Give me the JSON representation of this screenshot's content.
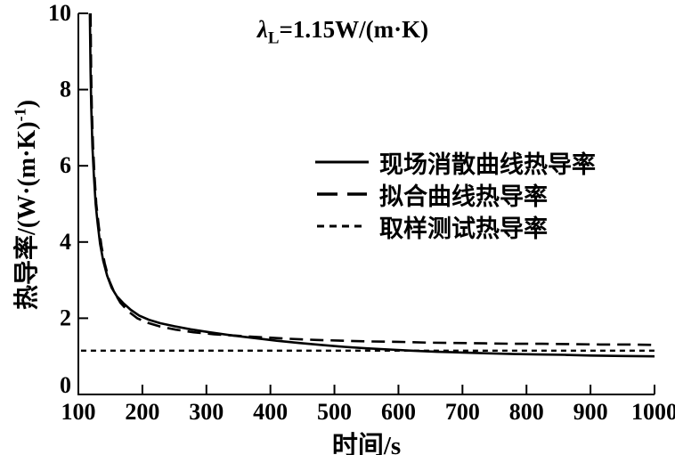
{
  "chart_data": {
    "type": "line",
    "annotation": {
      "symbol": "λ",
      "subscript": "L",
      "value": "=1.15W/(m·K)"
    },
    "xlabel": "时间/s",
    "ylabel_pre": "热导率/(W·(m·K)",
    "ylabel_sup": "-1",
    "ylabel_post": ")",
    "xlim": [
      100,
      1000
    ],
    "ylim": [
      0,
      10
    ],
    "xticks": [
      100,
      200,
      300,
      400,
      500,
      600,
      700,
      800,
      900,
      1000
    ],
    "yticks": [
      0,
      2,
      4,
      6,
      8,
      10
    ],
    "grid": false,
    "legend_position": "center-right",
    "line_color": "#000000",
    "background_color": "#ffffff",
    "series": [
      {
        "name": "现场消散曲线热导率",
        "style": "solid",
        "points": [
          [
            118,
            10
          ],
          [
            119,
            8.5
          ],
          [
            120,
            7.6
          ],
          [
            122,
            6.5
          ],
          [
            124,
            5.8
          ],
          [
            127,
            5.0
          ],
          [
            130,
            4.5
          ],
          [
            134,
            3.95
          ],
          [
            139,
            3.5
          ],
          [
            145,
            3.12
          ],
          [
            152,
            2.8
          ],
          [
            160,
            2.58
          ],
          [
            170,
            2.4
          ],
          [
            182,
            2.22
          ],
          [
            195,
            2.07
          ],
          [
            210,
            1.96
          ],
          [
            228,
            1.87
          ],
          [
            250,
            1.79
          ],
          [
            275,
            1.71
          ],
          [
            305,
            1.63
          ],
          [
            340,
            1.55
          ],
          [
            375,
            1.48
          ],
          [
            410,
            1.41
          ],
          [
            445,
            1.35
          ],
          [
            480,
            1.3
          ],
          [
            515,
            1.25
          ],
          [
            550,
            1.21
          ],
          [
            585,
            1.18
          ],
          [
            620,
            1.15
          ],
          [
            660,
            1.12
          ],
          [
            700,
            1.1
          ],
          [
            740,
            1.08
          ],
          [
            780,
            1.06
          ],
          [
            820,
            1.05
          ],
          [
            860,
            1.04
          ],
          [
            900,
            1.02
          ],
          [
            950,
            1.01
          ],
          [
            1000,
            1.0
          ]
        ]
      },
      {
        "name": "拟合曲线热导率",
        "style": "dashed",
        "points": [
          [
            119,
            10
          ],
          [
            120,
            8.4
          ],
          [
            121,
            7.5
          ],
          [
            123,
            6.5
          ],
          [
            125,
            5.8
          ],
          [
            128,
            5.0
          ],
          [
            132,
            4.4
          ],
          [
            136,
            3.9
          ],
          [
            141,
            3.45
          ],
          [
            148,
            3.0
          ],
          [
            156,
            2.68
          ],
          [
            166,
            2.4
          ],
          [
            178,
            2.18
          ],
          [
            192,
            2.0
          ],
          [
            208,
            1.88
          ],
          [
            228,
            1.78
          ],
          [
            252,
            1.7
          ],
          [
            280,
            1.63
          ],
          [
            312,
            1.58
          ],
          [
            348,
            1.54
          ],
          [
            388,
            1.5
          ],
          [
            430,
            1.46
          ],
          [
            472,
            1.43
          ],
          [
            515,
            1.41
          ],
          [
            558,
            1.39
          ],
          [
            600,
            1.38
          ],
          [
            645,
            1.36
          ],
          [
            690,
            1.35
          ],
          [
            735,
            1.34
          ],
          [
            780,
            1.33
          ],
          [
            825,
            1.33
          ],
          [
            870,
            1.32
          ],
          [
            915,
            1.31
          ],
          [
            960,
            1.31
          ],
          [
            1000,
            1.3
          ]
        ]
      },
      {
        "name": "取样测试热导率",
        "style": "dotted",
        "points": [
          [
            104,
            1.15
          ],
          [
            1000,
            1.15
          ]
        ]
      }
    ]
  }
}
